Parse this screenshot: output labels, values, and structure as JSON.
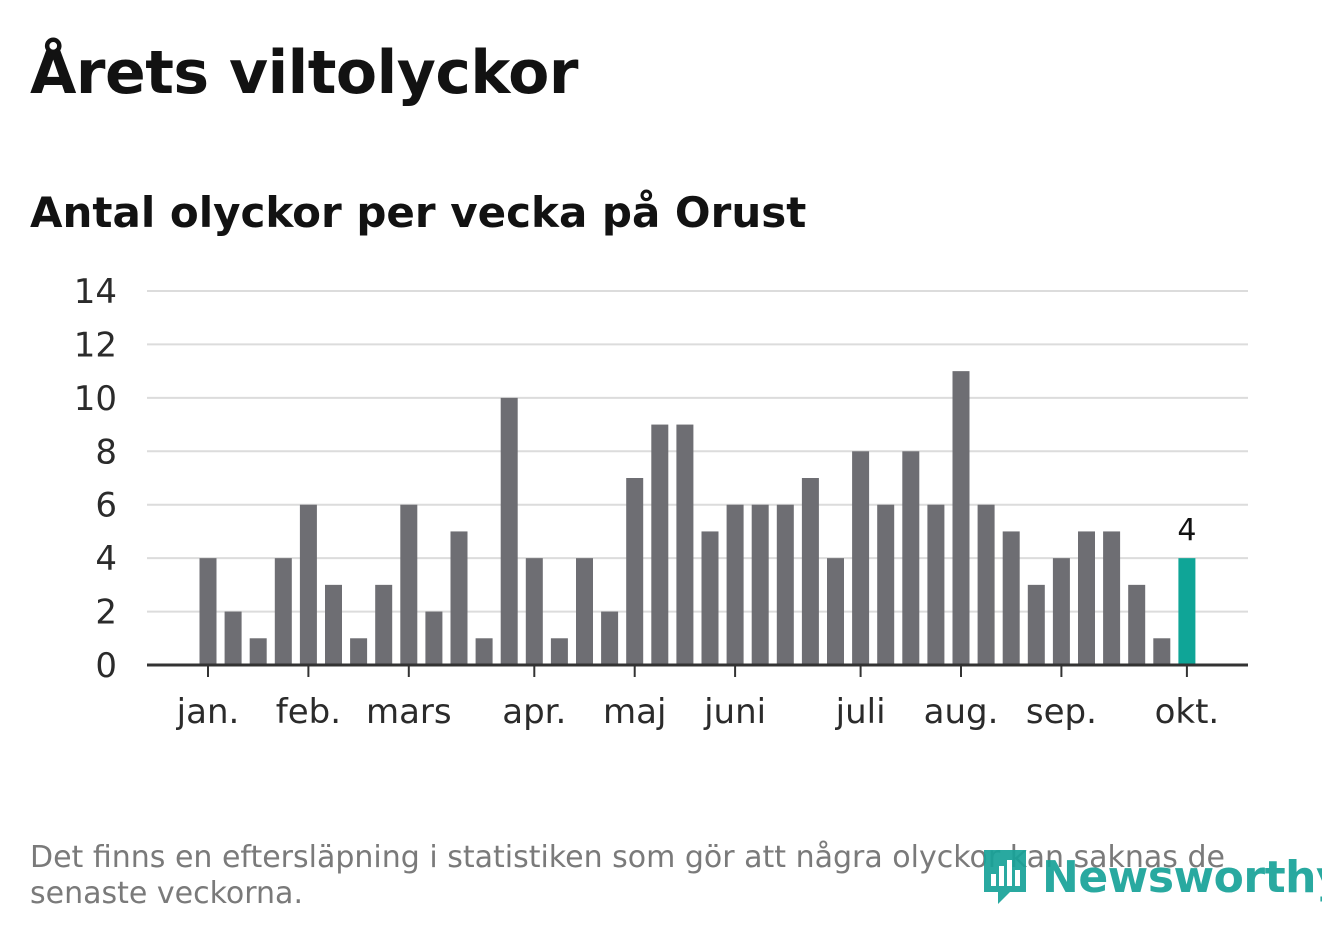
{
  "header": {
    "title": "Årets viltolyckor",
    "subtitle": "Antal olyckor per vecka på Orust"
  },
  "chart_data": {
    "type": "bar",
    "title": "Årets viltolyckor",
    "subtitle": "Antal olyckor per vecka på Orust",
    "xlabel": "",
    "ylabel": "",
    "ylim": [
      0,
      14
    ],
    "yticks": [
      0,
      2,
      4,
      6,
      8,
      10,
      12,
      14
    ],
    "grid": true,
    "series": [
      {
        "name": "Antal olyckor",
        "values": [
          4,
          2,
          1,
          4,
          6,
          3,
          1,
          3,
          6,
          2,
          5,
          1,
          10,
          4,
          1,
          4,
          2,
          7,
          9,
          9,
          5,
          6,
          6,
          6,
          7,
          4,
          8,
          6,
          8,
          6,
          11,
          6,
          5,
          3,
          4,
          5,
          5,
          3,
          1,
          4
        ]
      }
    ],
    "month_ticks": [
      {
        "label": "jan.",
        "week_index": 0
      },
      {
        "label": "feb.",
        "week_index": 4
      },
      {
        "label": "mars",
        "week_index": 8
      },
      {
        "label": "apr.",
        "week_index": 13
      },
      {
        "label": "maj",
        "week_index": 17
      },
      {
        "label": "juni",
        "week_index": 21
      },
      {
        "label": "juli",
        "week_index": 26
      },
      {
        "label": "aug.",
        "week_index": 30
      },
      {
        "label": "sep.",
        "week_index": 34
      },
      {
        "label": "okt.",
        "week_index": 39
      }
    ],
    "highlight": {
      "week_index": 39,
      "value": 4,
      "label": "4"
    }
  },
  "colors": {
    "bar": "#6e6e73",
    "highlight": "#0fa597",
    "grid": "#dcdcdc",
    "axis": "#333333",
    "text": "#121212",
    "note": "#7a7a7a",
    "brand": "#17a298"
  },
  "footer": {
    "note": "Det finns en eftersläpning i statistiken som gör att några olyckor kan saknas de senaste veckorna.",
    "logo_text": "Newsworthy",
    "logo_icon": "newsworthy-logo-icon"
  }
}
